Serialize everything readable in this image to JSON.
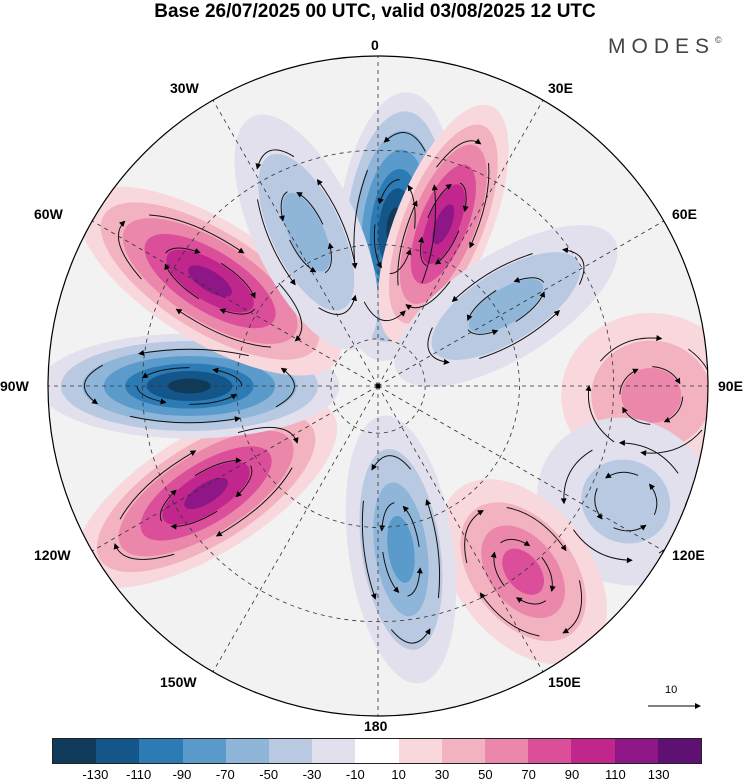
{
  "title": "Base 26/07/2025 00 UTC, valid 03/08/2025 12 UTC",
  "brand": "MODES",
  "brand_mark": "©",
  "longitude_labels": {
    "top": "0",
    "ne": "30E",
    "e60": "60E",
    "e90": "90E",
    "e120": "120E",
    "e150": "150E",
    "bottom": "180",
    "w150": "150W",
    "w120": "120W",
    "w90": "90W",
    "w60": "60W",
    "nw": "30W"
  },
  "reference_vector": {
    "label": "10"
  },
  "colorbar": {
    "colors": [
      "#0f3a5a",
      "#14568a",
      "#2d7bb5",
      "#5a9bcc",
      "#8fb6d9",
      "#b9c9e1",
      "#e3e0ee",
      "#ffffff",
      "#f8d8dc",
      "#f3b2c0",
      "#ec87ac",
      "#db4f9a",
      "#c0268c",
      "#8e1686",
      "#5e1173"
    ],
    "ticks": [
      "-130",
      "-110",
      "-90",
      "-70",
      "-50",
      "-30",
      "-10",
      "10",
      "30",
      "50",
      "70",
      "90",
      "110",
      "130"
    ]
  },
  "anomaly_centers": [
    {
      "name": "dark-blue-north",
      "lon": 6,
      "colat": 34,
      "value": -140,
      "shape": [
        0.38,
        0.9
      ]
    },
    {
      "name": "purple-ne",
      "lon": 22,
      "colat": 37,
      "value": 120,
      "shape": [
        0.32,
        0.85
      ]
    },
    {
      "name": "blue-60e",
      "lon": 58,
      "colat": 32,
      "value": -60,
      "shape": [
        0.35,
        0.85
      ]
    },
    {
      "name": "pink-90e",
      "lon": 92,
      "colat": 58,
      "value": 70,
      "shape": [
        0.55,
        0.6
      ]
    },
    {
      "name": "blue-120e",
      "lon": 115,
      "colat": 58,
      "value": -50,
      "shape": [
        0.55,
        0.6
      ]
    },
    {
      "name": "pink-145e",
      "lon": 142,
      "colat": 50,
      "value": 80,
      "shape": [
        0.45,
        0.7
      ]
    },
    {
      "name": "blue-180",
      "lon": 172,
      "colat": 35,
      "value": -90,
      "shape": [
        0.35,
        0.9
      ]
    },
    {
      "name": "purple-150w",
      "lon": 238,
      "colat": 43,
      "value": 130,
      "shape": [
        0.4,
        1.0
      ]
    },
    {
      "name": "dark-blue-90w",
      "lon": 270,
      "colat": 40,
      "value": -140,
      "shape": [
        0.35,
        1.0
      ]
    },
    {
      "name": "purple-60w",
      "lon": 302,
      "colat": 42,
      "value": 125,
      "shape": [
        0.4,
        1.0
      ]
    },
    {
      "name": "blue-30w",
      "lon": 335,
      "colat": 36,
      "value": -60,
      "shape": [
        0.35,
        0.85
      ]
    }
  ]
}
